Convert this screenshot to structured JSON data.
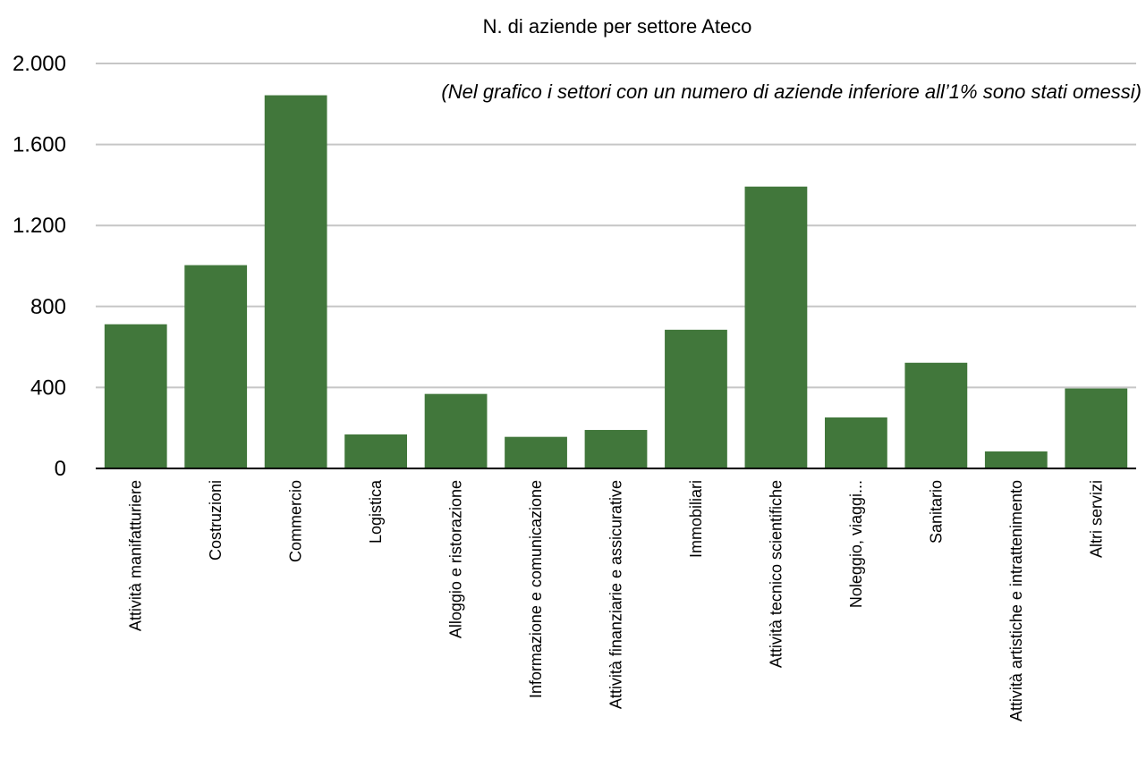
{
  "chart_data": {
    "type": "bar",
    "title": "N. di aziende per settore Ateco",
    "note": "(Nel grafico i settori con un numero di aziende inferiore all’1% sono stati omessi)",
    "xlabel": "",
    "ylabel": "",
    "ylim": [
      0,
      2000
    ],
    "yticks": [
      0,
      400,
      800,
      1200,
      1600,
      2000
    ],
    "ytick_labels": [
      "0",
      "400",
      "800",
      "1.200",
      "1.600",
      "2.000"
    ],
    "grid": true,
    "legend": "none",
    "bar_color": "#41773b",
    "categories": [
      "Attività manifatturiere",
      "Costruzioni",
      "Commercio",
      "Logistica",
      "Alloggio e ristorazione",
      "Informazione e comunicazione",
      "Attività finanziarie e assicurative",
      "Immobiliari",
      "Attività tecnico scientifiche",
      "Noleggio, viaggi...",
      "Sanitario",
      "Attività artistiche e intrattenimento",
      "Altri servizi"
    ],
    "values": [
      712,
      1004,
      1843,
      168,
      368,
      156,
      190,
      685,
      1392,
      252,
      522,
      84,
      395
    ]
  }
}
